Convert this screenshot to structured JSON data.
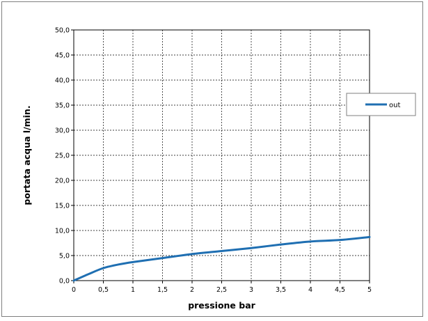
{
  "chart_data": {
    "type": "line",
    "xlabel": "pressione bar",
    "ylabel": "portata acqua  l/min.",
    "xlim": [
      0,
      5
    ],
    "ylim": [
      0,
      50
    ],
    "x_ticks": [
      "0",
      "0,5",
      "1",
      "1,5",
      "2",
      "2,5",
      "3",
      "3,5",
      "4",
      "4,5",
      "5"
    ],
    "y_ticks": [
      "0,0",
      "5,0",
      "10,0",
      "15,0",
      "20,0",
      "25,0",
      "30,0",
      "35,0",
      "40,0",
      "45,0",
      "50,0"
    ],
    "grid": true,
    "legend_position": "right",
    "series": [
      {
        "name": "out",
        "color": "#1f6fb2",
        "x": [
          0,
          0.25,
          0.5,
          0.75,
          1,
          1.5,
          2,
          2.5,
          3,
          3.5,
          4,
          4.5,
          5
        ],
        "y": [
          0.0,
          1.3,
          2.5,
          3.2,
          3.7,
          4.5,
          5.3,
          5.9,
          6.5,
          7.2,
          7.8,
          8.1,
          8.7
        ]
      }
    ]
  }
}
